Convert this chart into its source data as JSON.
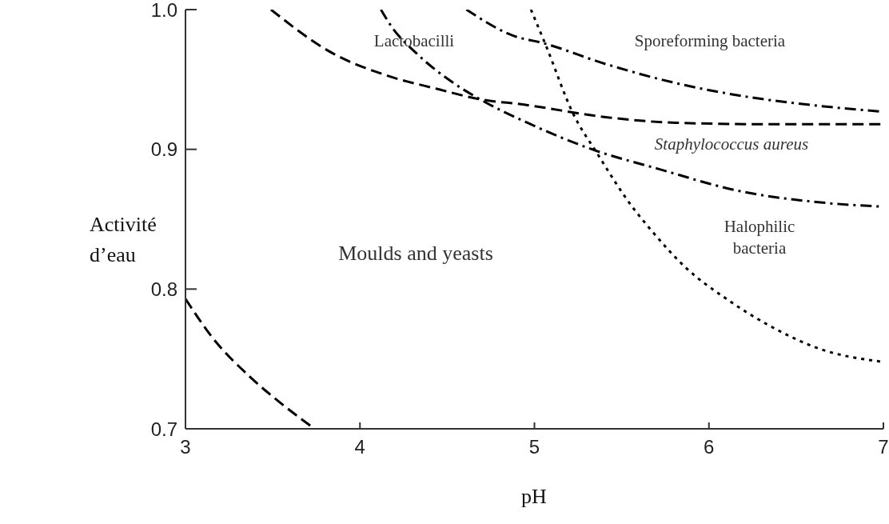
{
  "chart_data": {
    "type": "line",
    "xlabel": "pH",
    "ylabel": "Activité d’eau",
    "xlim": [
      3,
      7
    ],
    "ylim": [
      0.7,
      1.0
    ],
    "xticks": [
      3,
      4,
      5,
      6,
      7
    ],
    "yticks": [
      0.7,
      0.8,
      0.9,
      {
        "value": 1,
        "label": "1.0"
      }
    ],
    "grid": false,
    "legend": false,
    "marker": "none",
    "series": [
      {
        "color": "#000000",
        "line_style": "dashed",
        "x": [
          3.0,
          3.15,
          3.38,
          3.56,
          3.74
        ],
        "values": [
          0.793,
          0.766,
          0.736,
          0.717,
          0.7
        ]
      },
      {
        "color": "#000000",
        "line_style": "dashed",
        "x": [
          3.49,
          3.84,
          4.15,
          4.45,
          4.68,
          4.94,
          5.41,
          5.81,
          6.33,
          6.99
        ],
        "values": [
          1.0,
          0.969,
          0.953,
          0.943,
          0.936,
          0.932,
          0.923,
          0.919,
          0.918,
          0.918
        ]
      },
      {
        "color": "#000000",
        "line_style": "dashdot",
        "x": [
          4.12,
          4.18,
          4.33,
          4.53,
          4.7,
          4.96,
          5.33,
          5.71,
          6.18,
          6.64,
          6.99
        ],
        "values": [
          1.0,
          0.988,
          0.968,
          0.948,
          0.935,
          0.919,
          0.9,
          0.886,
          0.87,
          0.862,
          0.859
        ]
      },
      {
        "color": "#000000",
        "line_style": "dashdot",
        "x": [
          4.61,
          4.91,
          5.02,
          5.41,
          5.79,
          6.25,
          6.64,
          6.99
        ],
        "values": [
          1.0,
          0.98,
          0.977,
          0.961,
          0.948,
          0.937,
          0.931,
          0.927
        ]
      },
      {
        "color": "#000000",
        "line_style": "dotted",
        "x": [
          4.98,
          5.07,
          5.22,
          5.36,
          5.56,
          5.67,
          5.87,
          6.1,
          6.33,
          6.64,
          6.99
        ],
        "values": [
          1.0,
          0.973,
          0.926,
          0.897,
          0.859,
          0.842,
          0.815,
          0.793,
          0.775,
          0.757,
          0.748
        ]
      }
    ],
    "annotations": [
      "Lactobacilli",
      "Sporeforming bacteria",
      "Staphylococcus aureus",
      "Halophilic\nbacteria",
      "Moulds and yeasts"
    ]
  }
}
